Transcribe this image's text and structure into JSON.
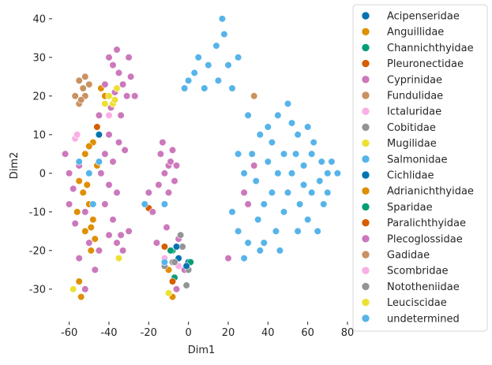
{
  "chart_data": {
    "type": "scatter",
    "xlabel": "Dim1",
    "ylabel": "Dim2",
    "xlim": [
      -67,
      80
    ],
    "ylim": [
      -38,
      42
    ],
    "xticks": [
      -60,
      -40,
      -20,
      0,
      20,
      40,
      60,
      80
    ],
    "yticks": [
      -30,
      -20,
      -10,
      0,
      10,
      20,
      30,
      40
    ],
    "grid": false,
    "legend_placement": "right, outside plot",
    "series": [
      {
        "name": "Acipenseridae",
        "color": "#0173b2",
        "points": [
          [
            -45,
            10
          ],
          [
            0,
            -23
          ],
          [
            -5,
            -22
          ]
        ]
      },
      {
        "name": "Anguillidae",
        "color": "#de8f05",
        "points": [
          [
            -52,
            5
          ],
          [
            -48,
            8
          ],
          [
            -55,
            -2
          ],
          [
            -53,
            -5
          ],
          [
            -50,
            -8
          ],
          [
            -48,
            -12
          ],
          [
            -56,
            -10
          ],
          [
            -52,
            -15
          ],
          [
            -49,
            -20
          ],
          [
            -47,
            -17
          ],
          [
            -55,
            -28
          ],
          [
            -54,
            -32
          ],
          [
            -42,
            20
          ],
          [
            -44,
            22
          ],
          [
            -10,
            -25
          ],
          [
            -8,
            -32
          ],
          [
            -20,
            -9
          ],
          [
            -46,
            2
          ]
        ]
      },
      {
        "name": "Channichthyidae",
        "color": "#029e73",
        "points": [
          [
            -8,
            -20
          ],
          [
            1,
            -23
          ],
          [
            -7,
            -27
          ]
        ]
      },
      {
        "name": "Pleuronectidae",
        "color": "#d55e00",
        "points": [
          [
            -20,
            -9
          ],
          [
            -12,
            -19
          ],
          [
            -8,
            -28
          ]
        ]
      },
      {
        "name": "Cyprinidae",
        "color": "#cc78bc",
        "points": [
          [
            -40,
            30
          ],
          [
            -38,
            28
          ],
          [
            -35,
            26
          ],
          [
            -30,
            30
          ],
          [
            -33,
            23
          ],
          [
            -37,
            21
          ],
          [
            -29,
            25
          ],
          [
            -42,
            23
          ],
          [
            -36,
            32
          ],
          [
            -31,
            20
          ],
          [
            -39,
            17
          ],
          [
            -34,
            15
          ],
          [
            -40,
            10
          ],
          [
            -35,
            8
          ],
          [
            -42,
            5
          ],
          [
            -38,
            3
          ],
          [
            -32,
            6
          ],
          [
            -44,
            0
          ],
          [
            -40,
            -3
          ],
          [
            -36,
            -5
          ],
          [
            -42,
            -8
          ],
          [
            -38,
            -12
          ],
          [
            -40,
            -16
          ],
          [
            -36,
            -18
          ],
          [
            -33,
            -20
          ],
          [
            -30,
            -15
          ],
          [
            -45,
            -20
          ],
          [
            -47,
            -25
          ],
          [
            -52,
            -30
          ],
          [
            -62,
            5
          ],
          [
            -60,
            0
          ],
          [
            -58,
            -4
          ],
          [
            -55,
            2
          ],
          [
            -60,
            -8
          ],
          [
            -57,
            -13
          ],
          [
            -52,
            -10
          ],
          [
            -50,
            -18
          ],
          [
            -55,
            -22
          ],
          [
            -10,
            2
          ],
          [
            -14,
            5
          ],
          [
            -8,
            6
          ],
          [
            -12,
            0
          ],
          [
            -7,
            -2
          ],
          [
            -15,
            -3
          ],
          [
            -10,
            -5
          ],
          [
            -13,
            8
          ],
          [
            -6,
            2
          ],
          [
            -11,
            -14
          ],
          [
            -5,
            -17
          ],
          [
            -16,
            -18
          ],
          [
            -20,
            -5
          ],
          [
            -18,
            -10
          ],
          [
            -2,
            -25
          ],
          [
            -6,
            -30
          ],
          [
            30,
            -8
          ],
          [
            28,
            -5
          ],
          [
            33,
            2
          ],
          [
            20,
            -22
          ],
          [
            -27,
            20
          ],
          [
            -45,
            15
          ]
        ]
      },
      {
        "name": "Fundulidae",
        "color": "#ca9161",
        "points": [
          [
            -55,
            24
          ],
          [
            -53,
            22
          ],
          [
            -52,
            20
          ],
          [
            -57,
            20
          ],
          [
            -55,
            18
          ],
          [
            -52,
            25
          ],
          [
            33,
            20
          ]
        ]
      },
      {
        "name": "Ictaluridae",
        "color": "#fbafe4",
        "points": [
          [
            -57,
            9
          ],
          [
            -40,
            15
          ],
          [
            -12,
            -22
          ]
        ]
      },
      {
        "name": "Cobitidae",
        "color": "#949494",
        "points": [
          [
            -4,
            -16
          ],
          [
            -8,
            -23
          ],
          [
            -3,
            -19
          ],
          [
            -12,
            -24
          ],
          [
            0,
            -25
          ]
        ]
      },
      {
        "name": "Mugilidae",
        "color": "#ece133",
        "points": [
          [
            -40,
            20
          ],
          [
            -38,
            18
          ],
          [
            -42,
            18
          ],
          [
            -35,
            -22
          ],
          [
            -10,
            -31
          ],
          [
            -58,
            -30
          ]
        ]
      },
      {
        "name": "Salmonidae",
        "color": "#56b4e9",
        "points": [
          [
            45,
            15
          ],
          [
            50,
            18
          ],
          [
            55,
            10
          ],
          [
            48,
            5
          ],
          [
            52,
            0
          ],
          [
            58,
            -3
          ],
          [
            62,
            5
          ],
          [
            66,
            -2
          ],
          [
            70,
            0
          ],
          [
            72,
            3
          ],
          [
            68,
            -8
          ],
          [
            60,
            -12
          ],
          [
            55,
            -15
          ],
          [
            48,
            -10
          ],
          [
            42,
            -5
          ],
          [
            40,
            3
          ],
          [
            44,
            -15
          ],
          [
            38,
            -18
          ],
          [
            35,
            -12
          ],
          [
            30,
            -18
          ],
          [
            25,
            -15
          ],
          [
            28,
            0
          ],
          [
            32,
            5
          ],
          [
            36,
            10
          ],
          [
            40,
            12
          ],
          [
            30,
            15
          ],
          [
            25,
            5
          ],
          [
            22,
            -10
          ],
          [
            65,
            -15
          ],
          [
            60,
            12
          ],
          [
            52,
            13
          ],
          [
            46,
            -20
          ],
          [
            36,
            -20
          ],
          [
            28,
            -22
          ],
          [
            62,
            -5
          ],
          [
            56,
            -8
          ],
          [
            50,
            -5
          ],
          [
            45,
            0
          ],
          [
            70,
            -5
          ],
          [
            67,
            3
          ],
          [
            58,
            2
          ],
          [
            54,
            5
          ],
          [
            38,
            -8
          ],
          [
            34,
            -2
          ],
          [
            42,
            8
          ],
          [
            20,
            28
          ],
          [
            15,
            24
          ],
          [
            22,
            22
          ],
          [
            10,
            28
          ],
          [
            18,
            36
          ],
          [
            17,
            40
          ],
          [
            14,
            33
          ],
          [
            5,
            30
          ],
          [
            0,
            24
          ],
          [
            -2,
            22
          ],
          [
            25,
            30
          ],
          [
            8,
            22
          ],
          [
            3,
            26
          ],
          [
            -12,
            -8
          ],
          [
            -22,
            -8
          ]
        ]
      },
      {
        "name": "Cichlidae",
        "color": "#0173b2",
        "points": [
          [
            -6,
            -19
          ],
          [
            -1,
            -24
          ]
        ]
      },
      {
        "name": "Adrianichthyidae",
        "color": "#de8f05",
        "points": [
          [
            -51,
            -3
          ],
          [
            -49,
            -14
          ],
          [
            -50,
            7
          ]
        ]
      },
      {
        "name": "Sparidae",
        "color": "#029e73",
        "points": [
          [
            -9,
            -20
          ]
        ]
      },
      {
        "name": "Paralichthyidae",
        "color": "#d55e00",
        "points": [
          [
            -46,
            12
          ]
        ]
      },
      {
        "name": "Plecoglossidae",
        "color": "#cc78bc",
        "points": [
          [
            -34,
            -16
          ],
          [
            -9,
            3
          ]
        ]
      },
      {
        "name": "Gadidae",
        "color": "#ca9161",
        "points": [
          [
            -54,
            19
          ],
          [
            -50,
            23
          ]
        ]
      },
      {
        "name": "Scombridae",
        "color": "#fbafe4",
        "points": [
          [
            -56,
            10
          ],
          [
            -5,
            -24
          ]
        ]
      },
      {
        "name": "Nototheniidae",
        "color": "#949494",
        "points": [
          [
            -7,
            -23
          ],
          [
            -1,
            -29
          ]
        ]
      },
      {
        "name": "Leuciscidae",
        "color": "#ece133",
        "points": [
          [
            -37,
            19
          ],
          [
            -36,
            22
          ]
        ]
      },
      {
        "name": "undetermined",
        "color": "#56b4e9",
        "points": [
          [
            -55,
            3
          ],
          [
            -50,
            0
          ],
          [
            -48,
            -8
          ],
          [
            -45,
            3
          ],
          [
            -12,
            -23
          ],
          [
            75,
            0
          ],
          [
            63,
            8
          ]
        ]
      }
    ]
  }
}
